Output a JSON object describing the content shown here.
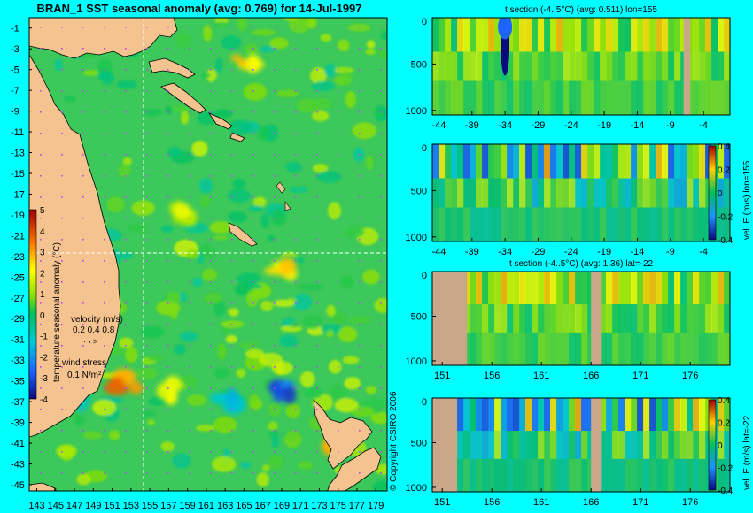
{
  "page": {
    "title": "BRAN_1 SST seasonal anomaly (avg: 0.769) for 14-Jul-1997",
    "copyright": "© Copyright CSIRO 2006",
    "background": "#00ffff",
    "land_color": "#f4c38f",
    "section_land_color": "#c8a888"
  },
  "chart_data": [
    {
      "type": "heatmap",
      "name": "map",
      "title": "BRAN_1 SST seasonal anomaly (avg: 0.769) for 14-Jul-1997",
      "xticks": [
        "143",
        "145",
        "147",
        "149",
        "151",
        "153",
        "155",
        "157",
        "159",
        "161",
        "163",
        "165",
        "167",
        "169",
        "171",
        "173",
        "175",
        "177",
        "179"
      ],
      "yticks": [
        "-1",
        "-3",
        "-5",
        "-7",
        "-9",
        "-11",
        "-13",
        "-15",
        "-17",
        "-19",
        "-21",
        "-23",
        "-25",
        "-27",
        "-29",
        "-31",
        "-33",
        "-35",
        "-37",
        "-39",
        "-41",
        "-43",
        "-45"
      ],
      "colorbar": {
        "label": "temperature seasonal anomaly (°C)",
        "ticks": [
          "5",
          "4",
          "3",
          "2",
          "1",
          "0",
          "-1",
          "-2",
          "-3",
          "-4"
        ],
        "range": [
          -4,
          5
        ]
      },
      "velocity_legend": {
        "title": "velocity (m/s)",
        "values": "0.2 0.4 0.8"
      },
      "wind_legend": {
        "title": "wind stress",
        "value": "0.1 N/m²"
      },
      "crosshair": {
        "lon": 155,
        "lat": -22
      },
      "hotspots": [
        {
          "lon": 152.5,
          "lat": -35,
          "v": 3.5
        },
        {
          "lon": 157,
          "lat": -36,
          "v": 2.5
        },
        {
          "lon": 169,
          "lat": -24,
          "v": 2.5
        },
        {
          "lon": 165,
          "lat": -4,
          "v": 2.5
        },
        {
          "lon": 159,
          "lat": -19,
          "v": 2
        },
        {
          "lon": 175,
          "lat": -41,
          "v": 3
        }
      ],
      "coldspots": [
        {
          "lon": 169,
          "lat": -36,
          "v": -3
        },
        {
          "lon": 163,
          "lat": -37,
          "v": -1.5
        },
        {
          "lon": 147,
          "lat": -37,
          "v": -1.2
        }
      ]
    },
    {
      "type": "heatmap",
      "name": "section-1",
      "title": "t section (-4..5°C) (avg: 0.511) lon=155",
      "xticks": [
        "-44",
        "-39",
        "-34",
        "-29",
        "-24",
        "-19",
        "-14",
        "-9",
        "-4"
      ],
      "yticks": [
        "0",
        "500",
        "1000"
      ],
      "xlim": [
        -45,
        0
      ],
      "ylim": [
        0,
        1050
      ],
      "land": [
        [
          -7,
          -6
        ]
      ]
    },
    {
      "type": "heatmap",
      "name": "section-2",
      "title": "",
      "xticks": [
        "-44",
        "-39",
        "-34",
        "-29",
        "-24",
        "-19",
        "-14",
        "-9",
        "-4"
      ],
      "yticks": [
        "0",
        "500",
        "1000"
      ],
      "xlim": [
        -45,
        0
      ],
      "ylim": [
        0,
        1050
      ],
      "colorbar": {
        "label": "vel. E (m/s) lon=155",
        "ticks": [
          "0.4",
          "0.2",
          "0",
          "-0.2",
          "-0.4"
        ]
      }
    },
    {
      "type": "heatmap",
      "name": "section-3",
      "title": "t section (-4..5°C) (avg: 1.36) lat=-22",
      "xticks": [
        "151",
        "156",
        "161",
        "166",
        "171",
        "176"
      ],
      "yticks": [
        "0",
        "500",
        "1000"
      ],
      "xlim": [
        150,
        180
      ],
      "ylim": [
        0,
        1050
      ],
      "land": [
        [
          150,
          153.5
        ],
        [
          166,
          167
        ]
      ]
    },
    {
      "type": "heatmap",
      "name": "section-4",
      "title": "",
      "xticks": [
        "151",
        "156",
        "161",
        "166",
        "171",
        "176"
      ],
      "yticks": [
        "0",
        "500",
        "1000"
      ],
      "xlim": [
        150,
        180
      ],
      "ylim": [
        0,
        1050
      ],
      "land": [
        [
          150,
          152.5
        ],
        [
          166,
          167
        ]
      ],
      "colorbar": {
        "label": "vel. E (m/s) lat=-22",
        "ticks": [
          "0.4",
          "0.2",
          "0",
          "-0.2",
          "-0.4"
        ]
      }
    }
  ]
}
